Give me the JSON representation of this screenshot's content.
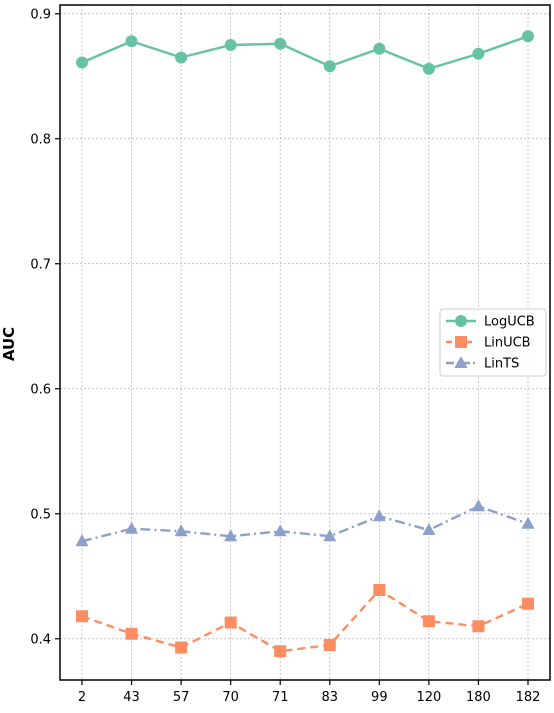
{
  "chart_data": {
    "type": "line",
    "title": "",
    "xlabel": "",
    "ylabel": "AUC",
    "categories": [
      "2",
      "43",
      "57",
      "70",
      "71",
      "83",
      "99",
      "120",
      "180",
      "182"
    ],
    "ylim": [
      0.367,
      0.907
    ],
    "yticks": [
      "0.4",
      "0.5",
      "0.6",
      "0.7",
      "0.8",
      "0.9"
    ],
    "grid": true,
    "legend_position": "center-right",
    "series": [
      {
        "name": "LogUCB",
        "color": "#66c2a5",
        "marker": "circle",
        "line_style": "solid",
        "values": [
          0.861,
          0.878,
          0.865,
          0.875,
          0.876,
          0.858,
          0.872,
          0.856,
          0.868,
          0.882
        ]
      },
      {
        "name": "LinUCB",
        "color": "#fc8d62",
        "marker": "square",
        "line_style": "dashed",
        "values": [
          0.418,
          0.404,
          0.393,
          0.413,
          0.39,
          0.395,
          0.439,
          0.414,
          0.41,
          0.428
        ]
      },
      {
        "name": "LinTS",
        "color": "#8da0cb",
        "marker": "triangle",
        "line_style": "dashdot",
        "values": [
          0.478,
          0.488,
          0.486,
          0.482,
          0.486,
          0.482,
          0.498,
          0.487,
          0.506,
          0.492
        ]
      }
    ]
  }
}
